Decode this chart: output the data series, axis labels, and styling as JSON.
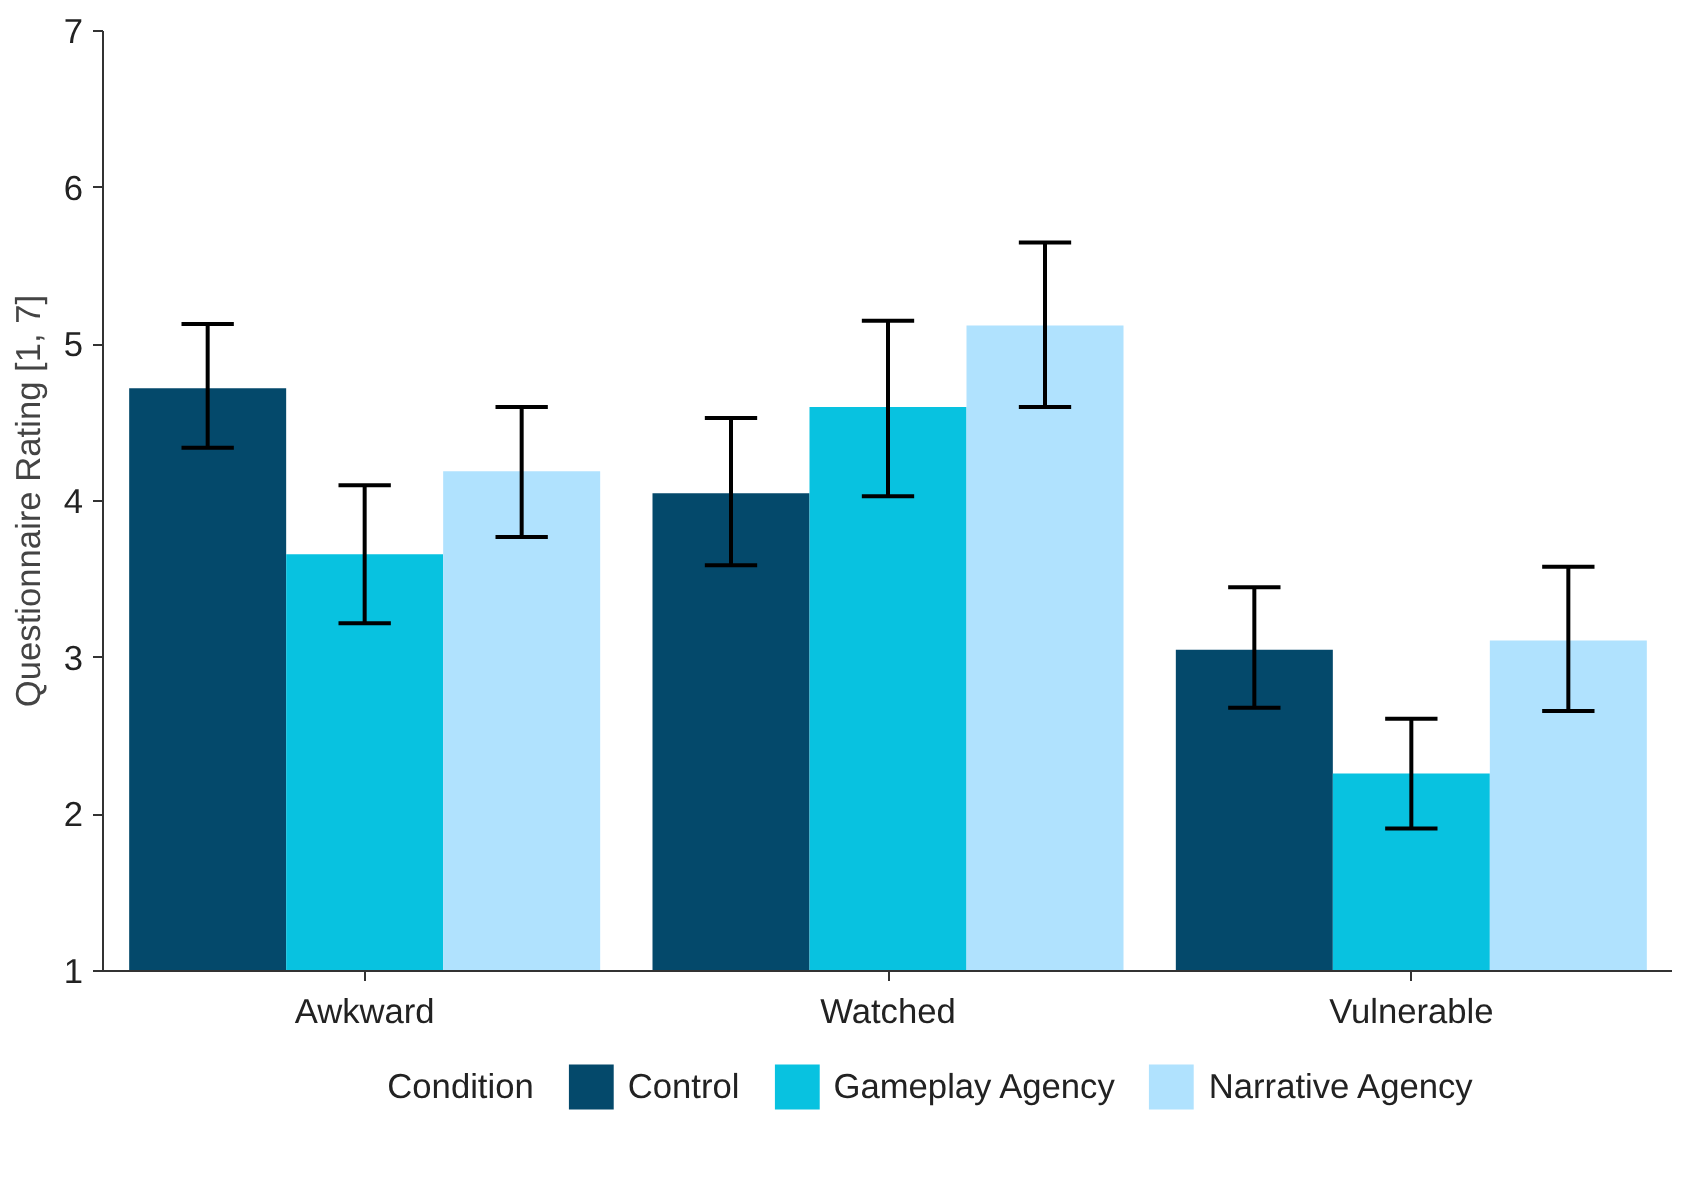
{
  "chart_data": {
    "type": "bar",
    "ylabel": "Questionnaire Rating [1, 7]",
    "legend_title": "Condition",
    "categories": [
      "Awkward",
      "Watched",
      "Vulnerable"
    ],
    "series": [
      {
        "name": "Control",
        "color": "#04496b",
        "values": [
          4.72,
          4.05,
          3.05
        ],
        "errors": [
          [
            4.34,
            5.13
          ],
          [
            3.59,
            4.53
          ],
          [
            2.68,
            3.45
          ]
        ]
      },
      {
        "name": "Gameplay Agency",
        "color": "#08c2e0",
        "values": [
          3.66,
          4.6,
          2.26
        ],
        "errors": [
          [
            3.22,
            4.1
          ],
          [
            4.03,
            5.15
          ],
          [
            1.91,
            2.61
          ]
        ]
      },
      {
        "name": "Narrative Agency",
        "color": "#b0e2fe",
        "values": [
          4.19,
          5.12,
          3.11
        ],
        "errors": [
          [
            3.77,
            4.6
          ],
          [
            4.6,
            5.65
          ],
          [
            2.66,
            3.58
          ]
        ]
      }
    ],
    "ylim": [
      1,
      7
    ],
    "yticks": [
      1,
      2,
      3,
      4,
      5,
      6,
      7
    ],
    "grid": false,
    "legend": "bottom"
  }
}
